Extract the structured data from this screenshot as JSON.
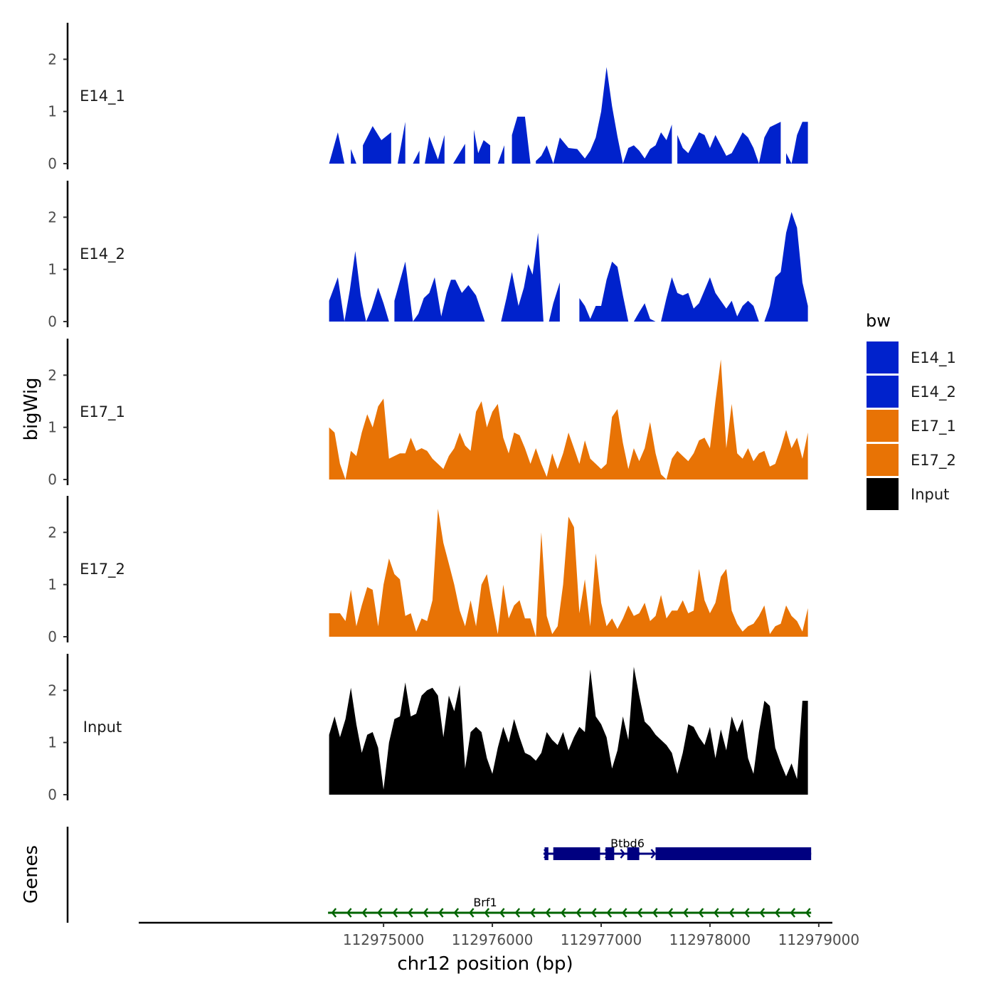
{
  "chart_data": {
    "type": "area",
    "title": "",
    "ylabel": "bigWig",
    "genes_label": "Genes",
    "xlabel": "chr12 position (bp)",
    "xlim": [
      112972750,
      112979125
    ],
    "x_ticks": [
      112975000,
      112976000,
      112977000,
      112978000,
      112979000
    ],
    "x_tick_labels": [
      "112975000",
      "112976000",
      "112977000",
      "112978000",
      "112979000"
    ],
    "ylim": [
      0,
      2.7
    ],
    "y_ticks": [
      0,
      1,
      2
    ],
    "y_tick_labels": [
      "0",
      "1",
      "2"
    ],
    "legend": {
      "title": "bw",
      "placement": "right",
      "entries": [
        {
          "label": "E14_1",
          "color": "#0022cc"
        },
        {
          "label": "E14_2",
          "color": "#0022cc"
        },
        {
          "label": "E17_1",
          "color": "#e87305"
        },
        {
          "label": "E17_2",
          "color": "#e87305"
        },
        {
          "label": "Input",
          "color": "#000000"
        }
      ]
    },
    "series": [
      {
        "name": "E14_1",
        "color": "#0022cc",
        "x": [
          112974500,
          112974580,
          112974640,
          112974700,
          112974750,
          112974810,
          112974900,
          112974980,
          112975070,
          112975130,
          112975200,
          112975270,
          112975330,
          112975380,
          112975420,
          112975500,
          112975560,
          112975640,
          112975750,
          112975830,
          112975870,
          112975920,
          112975980,
          112976050,
          112976110,
          112976180,
          112976230,
          112976300,
          112976350,
          112976400,
          112976450,
          112976500,
          112976560,
          112976620,
          112976700,
          112976780,
          112976850,
          112976900,
          112976950,
          112977000,
          112977050,
          112977100,
          112977150,
          112977200,
          112977250,
          112977300,
          112977350,
          112977400,
          112977450,
          112977500,
          112977550,
          112977600,
          112977650,
          112977700,
          112977750,
          112977800,
          112977850,
          112977900,
          112977950,
          112978000,
          112978050,
          112978100,
          112978150,
          112978200,
          112978250,
          112978300,
          112978350,
          112978400,
          112978450,
          112978500,
          112978550,
          112978600,
          112978650,
          112978700,
          112978750,
          112978800,
          112978850,
          112978900
        ],
        "y": [
          0,
          0.6,
          0,
          0.28,
          0,
          0.35,
          0.72,
          0.45,
          0.6,
          0,
          0.8,
          0,
          0.25,
          0,
          0.52,
          0.08,
          0.55,
          0,
          0.38,
          0.65,
          0.2,
          0.45,
          0.35,
          0,
          0.35,
          0.55,
          0.9,
          0.9,
          0,
          0.05,
          0.15,
          0.35,
          0,
          0.5,
          0.3,
          0.28,
          0.1,
          0.25,
          0.5,
          1.0,
          1.85,
          1.1,
          0.52,
          0,
          0.3,
          0.35,
          0.25,
          0.1,
          0.28,
          0.35,
          0.6,
          0.45,
          0.75,
          0.55,
          0.3,
          0.2,
          0.4,
          0.6,
          0.55,
          0.3,
          0.55,
          0.35,
          0.15,
          0.2,
          0.4,
          0.6,
          0.5,
          0.3,
          0,
          0.5,
          0.7,
          0.75,
          0.8,
          0.2,
          0,
          0.55,
          0.8,
          0.8
        ],
        "break_after": [
          2,
          4,
          8,
          10,
          12,
          16,
          18,
          22,
          24,
          28,
          52,
          72
        ]
      },
      {
        "name": "E14_2",
        "color": "#0022cc",
        "x": [
          112974500,
          112974580,
          112974640,
          112974690,
          112974740,
          112974790,
          112974840,
          112974890,
          112974950,
          112975000,
          112975050,
          112975100,
          112975200,
          112975270,
          112975320,
          112975370,
          112975420,
          112975470,
          112975530,
          112975580,
          112975620,
          112975660,
          112975720,
          112975780,
          112975850,
          112975930,
          112976080,
          112976130,
          112976180,
          112976240,
          112976290,
          112976330,
          112976370,
          112976420,
          112976470,
          112976520,
          112976560,
          112976620,
          112976700,
          112976760,
          112976800,
          112976850,
          112976900,
          112976950,
          112977000,
          112977050,
          112977100,
          112977150,
          112977200,
          112977250,
          112977300,
          112977350,
          112977400,
          112977450,
          112977500,
          112977550,
          112977600,
          112977650,
          112977700,
          112977750,
          112977800,
          112977850,
          112977900,
          112977950,
          112978000,
          112978050,
          112978100,
          112978150,
          112978200,
          112978250,
          112978300,
          112978350,
          112978400,
          112978450,
          112978500,
          112978550,
          112978600,
          112978650,
          112978700,
          112978750,
          112978800,
          112978850,
          112978900
        ],
        "y": [
          0.4,
          0.85,
          0,
          0.6,
          1.35,
          0.5,
          0,
          0.25,
          0.65,
          0.35,
          0,
          0.4,
          1.15,
          0,
          0.15,
          0.45,
          0.55,
          0.85,
          0.1,
          0.55,
          0.8,
          0.8,
          0.55,
          0.7,
          0.5,
          0,
          0,
          0.45,
          0.95,
          0.3,
          0.65,
          1.1,
          0.9,
          1.7,
          0,
          0,
          0.35,
          0.75,
          0,
          0,
          0.45,
          0.3,
          0.05,
          0.3,
          0.3,
          0.8,
          1.15,
          1.05,
          0.5,
          0,
          0,
          0.18,
          0.35,
          0.05,
          0,
          0,
          0.45,
          0.85,
          0.55,
          0.5,
          0.55,
          0.25,
          0.35,
          0.6,
          0.85,
          0.55,
          0.4,
          0.25,
          0.4,
          0.1,
          0.3,
          0.4,
          0.3,
          0,
          0,
          0.3,
          0.85,
          0.95,
          1.7,
          2.1,
          1.8,
          0.75,
          0.3
        ],
        "break_after": [
          10,
          25,
          37,
          39,
          49,
          54
        ]
      },
      {
        "name": "E17_1",
        "color": "#e87305",
        "x": [
          112974500,
          112974550,
          112974600,
          112974650,
          112974700,
          112974750,
          112974800,
          112974850,
          112974900,
          112974950,
          112975000,
          112975050,
          112975100,
          112975150,
          112975200,
          112975250,
          112975300,
          112975350,
          112975400,
          112975450,
          112975500,
          112975550,
          112975600,
          112975650,
          112975700,
          112975750,
          112975800,
          112975850,
          112975900,
          112975950,
          112976000,
          112976050,
          112976100,
          112976150,
          112976200,
          112976250,
          112976300,
          112976350,
          112976400,
          112976450,
          112976500,
          112976550,
          112976600,
          112976650,
          112976700,
          112976750,
          112976800,
          112976850,
          112976900,
          112976950,
          112977000,
          112977050,
          112977100,
          112977150,
          112977200,
          112977250,
          112977300,
          112977350,
          112977400,
          112977450,
          112977500,
          112977550,
          112977600,
          112977650,
          112977700,
          112977750,
          112977800,
          112977850,
          112977900,
          112977950,
          112978000,
          112978050,
          112978100,
          112978150,
          112978200,
          112978250,
          112978300,
          112978350,
          112978400,
          112978450,
          112978500,
          112978550,
          112978600,
          112978650,
          112978700,
          112978750,
          112978800,
          112978850,
          112978900
        ],
        "y": [
          1.0,
          0.9,
          0.3,
          0,
          0.55,
          0.45,
          0.9,
          1.25,
          1.0,
          1.4,
          1.55,
          0.4,
          0.45,
          0.5,
          0.5,
          0.8,
          0.55,
          0.6,
          0.55,
          0.4,
          0.3,
          0.2,
          0.45,
          0.6,
          0.9,
          0.65,
          0.55,
          1.3,
          1.5,
          1.0,
          1.3,
          1.45,
          0.8,
          0.5,
          0.9,
          0.85,
          0.6,
          0.3,
          0.6,
          0.3,
          0.05,
          0.5,
          0.2,
          0.5,
          0.9,
          0.6,
          0.3,
          0.75,
          0.4,
          0.3,
          0.2,
          0.3,
          1.2,
          1.35,
          0.7,
          0.2,
          0.6,
          0.35,
          0.6,
          1.1,
          0.5,
          0.1,
          0,
          0.4,
          0.55,
          0.45,
          0.35,
          0.5,
          0.75,
          0.8,
          0.6,
          1.5,
          2.3,
          0.6,
          1.45,
          0.5,
          0.4,
          0.6,
          0.35,
          0.5,
          0.55,
          0.25,
          0.3,
          0.6,
          0.95,
          0.6,
          0.8,
          0.4,
          0.9
        ],
        "break_after": []
      },
      {
        "name": "E17_2",
        "color": "#e87305",
        "x": [
          112974500,
          112974550,
          112974600,
          112974650,
          112974700,
          112974750,
          112974800,
          112974850,
          112974900,
          112974950,
          112975000,
          112975050,
          112975100,
          112975150,
          112975200,
          112975250,
          112975300,
          112975350,
          112975400,
          112975450,
          112975500,
          112975550,
          112975600,
          112975650,
          112975700,
          112975750,
          112975800,
          112975850,
          112975900,
          112975950,
          112976000,
          112976050,
          112976100,
          112976150,
          112976200,
          112976250,
          112976300,
          112976350,
          112976400,
          112976450,
          112976500,
          112976550,
          112976600,
          112976650,
          112976700,
          112976750,
          112976800,
          112976850,
          112976900,
          112976950,
          112977000,
          112977050,
          112977100,
          112977150,
          112977200,
          112977250,
          112977300,
          112977350,
          112977400,
          112977450,
          112977500,
          112977550,
          112977600,
          112977650,
          112977700,
          112977750,
          112977800,
          112977850,
          112977900,
          112977950,
          112978000,
          112978050,
          112978100,
          112978150,
          112978200,
          112978250,
          112978300,
          112978350,
          112978400,
          112978450,
          112978500,
          112978550,
          112978600,
          112978650,
          112978700,
          112978750,
          112978800,
          112978850,
          112978900
        ],
        "y": [
          0.45,
          0.45,
          0.45,
          0.3,
          0.9,
          0.2,
          0.6,
          0.95,
          0.9,
          0.2,
          1.0,
          1.5,
          1.2,
          1.1,
          0.4,
          0.45,
          0.1,
          0.35,
          0.3,
          0.7,
          2.45,
          1.8,
          1.4,
          1.0,
          0.5,
          0.2,
          0.7,
          0.2,
          1.0,
          1.2,
          0.6,
          0.05,
          1.0,
          0.35,
          0.6,
          0.7,
          0.35,
          0.35,
          0,
          2.0,
          0.4,
          0.05,
          0.2,
          1.0,
          2.3,
          2.1,
          0.45,
          1.1,
          0.2,
          1.6,
          0.65,
          0.2,
          0.35,
          0.15,
          0.35,
          0.6,
          0.4,
          0.45,
          0.65,
          0.3,
          0.4,
          0.8,
          0.35,
          0.5,
          0.5,
          0.7,
          0.45,
          0.5,
          1.3,
          0.7,
          0.45,
          0.65,
          1.15,
          1.3,
          0.5,
          0.25,
          0.1,
          0.2,
          0.25,
          0.4,
          0.6,
          0.05,
          0.2,
          0.25,
          0.6,
          0.4,
          0.3,
          0.1,
          0.55
        ],
        "break_after": []
      },
      {
        "name": "Input",
        "color": "#000000",
        "x": [
          112974500,
          112974550,
          112974600,
          112974650,
          112974700,
          112974750,
          112974800,
          112974850,
          112974900,
          112974950,
          112975000,
          112975050,
          112975100,
          112975150,
          112975200,
          112975250,
          112975300,
          112975350,
          112975400,
          112975450,
          112975500,
          112975550,
          112975600,
          112975650,
          112975700,
          112975750,
          112975800,
          112975850,
          112975900,
          112975950,
          112976000,
          112976050,
          112976100,
          112976150,
          112976200,
          112976250,
          112976300,
          112976350,
          112976400,
          112976450,
          112976500,
          112976550,
          112976600,
          112976650,
          112976700,
          112976750,
          112976800,
          112976850,
          112976900,
          112976950,
          112977000,
          112977050,
          112977100,
          112977150,
          112977200,
          112977250,
          112977300,
          112977350,
          112977400,
          112977450,
          112977500,
          112977550,
          112977600,
          112977650,
          112977700,
          112977750,
          112977800,
          112977850,
          112977900,
          112977950,
          112978000,
          112978050,
          112978100,
          112978150,
          112978200,
          112978250,
          112978300,
          112978350,
          112978400,
          112978450,
          112978500,
          112978550,
          112978600,
          112978650,
          112978700,
          112978750,
          112978800,
          112978850,
          112978900
        ],
        "y": [
          1.15,
          1.5,
          1.1,
          1.45,
          2.05,
          1.35,
          0.8,
          1.15,
          1.2,
          0.9,
          0.1,
          1.0,
          1.45,
          1.5,
          2.15,
          1.5,
          1.55,
          1.9,
          2.0,
          2.05,
          1.9,
          1.1,
          1.9,
          1.6,
          2.1,
          0.5,
          1.2,
          1.3,
          1.2,
          0.7,
          0.4,
          0.9,
          1.3,
          1.0,
          1.45,
          1.1,
          0.8,
          0.75,
          0.65,
          0.8,
          1.2,
          1.05,
          0.95,
          1.2,
          0.85,
          1.1,
          1.3,
          1.2,
          2.4,
          1.5,
          1.35,
          1.1,
          0.5,
          0.85,
          1.5,
          1.05,
          2.45,
          1.9,
          1.4,
          1.3,
          1.15,
          1.05,
          0.95,
          0.8,
          0.4,
          0.8,
          1.35,
          1.3,
          1.1,
          0.95,
          1.3,
          0.7,
          1.25,
          0.85,
          1.5,
          1.2,
          1.45,
          0.7,
          0.4,
          1.2,
          1.8,
          1.7,
          0.9,
          0.6,
          0.35,
          0.6,
          0.3,
          1.8,
          1.8
        ],
        "break_after": []
      }
    ],
    "genes": [
      {
        "name": "Btbd6",
        "strand": "+",
        "color": "#000080",
        "start": 112976470,
        "end": 112978930,
        "exons": [
          [
            112976480,
            112976515
          ],
          [
            112976560,
            112976990
          ],
          [
            112977040,
            112977120
          ],
          [
            112977240,
            112977350
          ],
          [
            112977500,
            112978930
          ]
        ]
      },
      {
        "name": "Brf1",
        "strand": "-",
        "color": "#006400",
        "start": 112974490,
        "end": 112978930,
        "exons": []
      }
    ]
  }
}
